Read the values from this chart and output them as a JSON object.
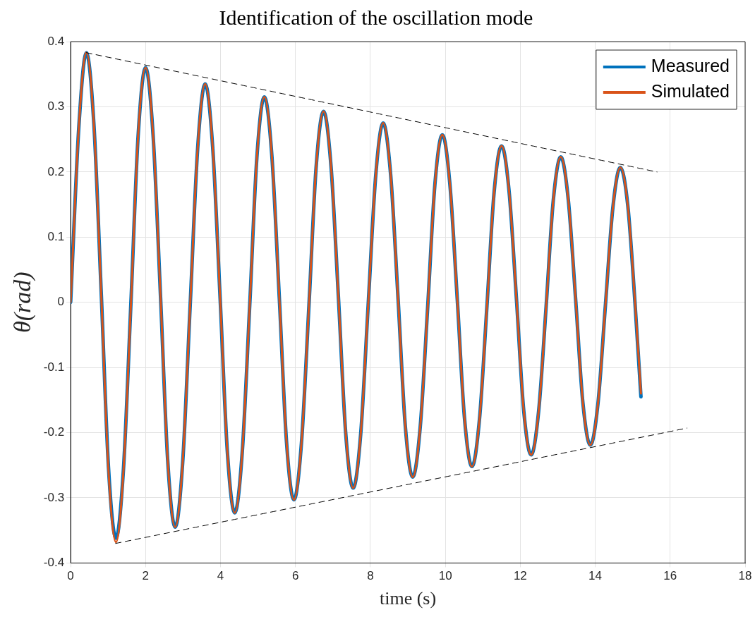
{
  "chart_data": {
    "type": "line",
    "title": "Identification of the oscillation mode",
    "xlabel": "time (s)",
    "ylabel": "θ(rad)",
    "x": [
      0,
      0.22,
      0.42,
      0.62,
      0.82,
      1.01,
      1.21,
      1.41,
      1.61,
      1.8,
      2.0,
      2.2,
      2.4,
      2.59,
      2.79,
      2.99,
      3.19,
      3.39,
      3.59,
      3.79,
      3.99,
      4.18,
      4.38,
      4.58,
      4.78,
      4.97,
      5.17,
      5.37,
      5.57,
      5.76,
      5.96,
      6.16,
      6.36,
      6.55,
      6.75,
      6.95,
      7.15,
      7.34,
      7.54,
      7.74,
      7.94,
      8.14,
      8.34,
      8.54,
      8.74,
      8.93,
      9.13,
      9.33,
      9.53,
      9.72,
      9.92,
      10.12,
      10.32,
      10.51,
      10.71,
      10.91,
      11.11,
      11.3,
      11.5,
      11.7,
      11.9,
      12.09,
      12.29,
      12.49,
      12.69,
      12.88,
      13.08,
      13.28,
      13.48,
      13.67,
      13.87,
      14.07,
      14.27,
      14.47,
      14.67,
      14.87,
      15.06,
      15.22
    ],
    "series": [
      {
        "name": "Measured",
        "color": "#0072bd",
        "values": [
          0,
          0.27,
          0.383,
          0.274,
          0.01,
          -0.253,
          -0.362,
          -0.256,
          0,
          0.254,
          0.36,
          0.257,
          0.008,
          -0.242,
          -0.345,
          -0.246,
          -0.005,
          0.236,
          0.335,
          0.239,
          0.006,
          -0.227,
          -0.323,
          -0.23,
          -0.004,
          0.222,
          0.315,
          0.225,
          0.006,
          -0.213,
          -0.303,
          -0.216,
          -0.005,
          0.206,
          0.293,
          0.208,
          0.004,
          -0.2,
          -0.285,
          -0.203,
          -0.005,
          0.193,
          0.275,
          0.196,
          0.004,
          -0.189,
          -0.268,
          -0.191,
          -0.006,
          0.18,
          0.257,
          0.182,
          0.003,
          -0.177,
          -0.252,
          -0.18,
          -0.006,
          0.168,
          0.24,
          0.171,
          0.003,
          -0.165,
          -0.234,
          -0.167,
          -0.006,
          0.156,
          0.223,
          0.158,
          0.002,
          -0.154,
          -0.219,
          -0.157,
          -0.006,
          0.145,
          0.207,
          0.148,
          0,
          -0.145
        ]
      },
      {
        "name": "Simulated",
        "color": "#d95319",
        "values": [
          0,
          0.27,
          0.383,
          0.273,
          0.008,
          -0.258,
          -0.368,
          -0.259,
          -0.002,
          0.254,
          0.36,
          0.257,
          0.008,
          -0.242,
          -0.345,
          -0.246,
          -0.005,
          0.236,
          0.335,
          0.239,
          0.006,
          -0.227,
          -0.323,
          -0.23,
          -0.004,
          0.222,
          0.315,
          0.225,
          0.006,
          -0.213,
          -0.303,
          -0.216,
          -0.005,
          0.206,
          0.293,
          0.208,
          0.004,
          -0.2,
          -0.285,
          -0.203,
          -0.005,
          0.193,
          0.275,
          0.196,
          0.004,
          -0.189,
          -0.268,
          -0.191,
          -0.006,
          0.18,
          0.257,
          0.182,
          0.003,
          -0.177,
          -0.252,
          -0.18,
          -0.006,
          0.168,
          0.24,
          0.171,
          0.003,
          -0.165,
          -0.234,
          -0.167,
          -0.006,
          0.156,
          0.223,
          0.158,
          0.002,
          -0.154,
          -0.219,
          -0.157,
          -0.006,
          0.145,
          0.207,
          0.148,
          0.002,
          -0.14
        ]
      },
      {
        "color": "#000000",
        "line_style": "dashed",
        "x": [
          0.42,
          15.65
        ],
        "values": [
          0.383,
          0.2
        ]
      },
      {
        "color": "#000000",
        "line_style": "dashed",
        "x": [
          1.2,
          16.45
        ],
        "values": [
          -0.37,
          -0.193
        ]
      }
    ],
    "xlim": [
      0,
      18
    ],
    "xticks": [
      0,
      2,
      4,
      6,
      8,
      10,
      12,
      14,
      16,
      18
    ],
    "ylim": [
      -0.4,
      0.4
    ],
    "yticks": [
      -0.4,
      -0.3,
      -0.2,
      -0.1,
      0,
      0.1,
      0.2,
      0.3,
      0.4
    ],
    "grid": true,
    "legend": "top right",
    "marker": "none"
  }
}
